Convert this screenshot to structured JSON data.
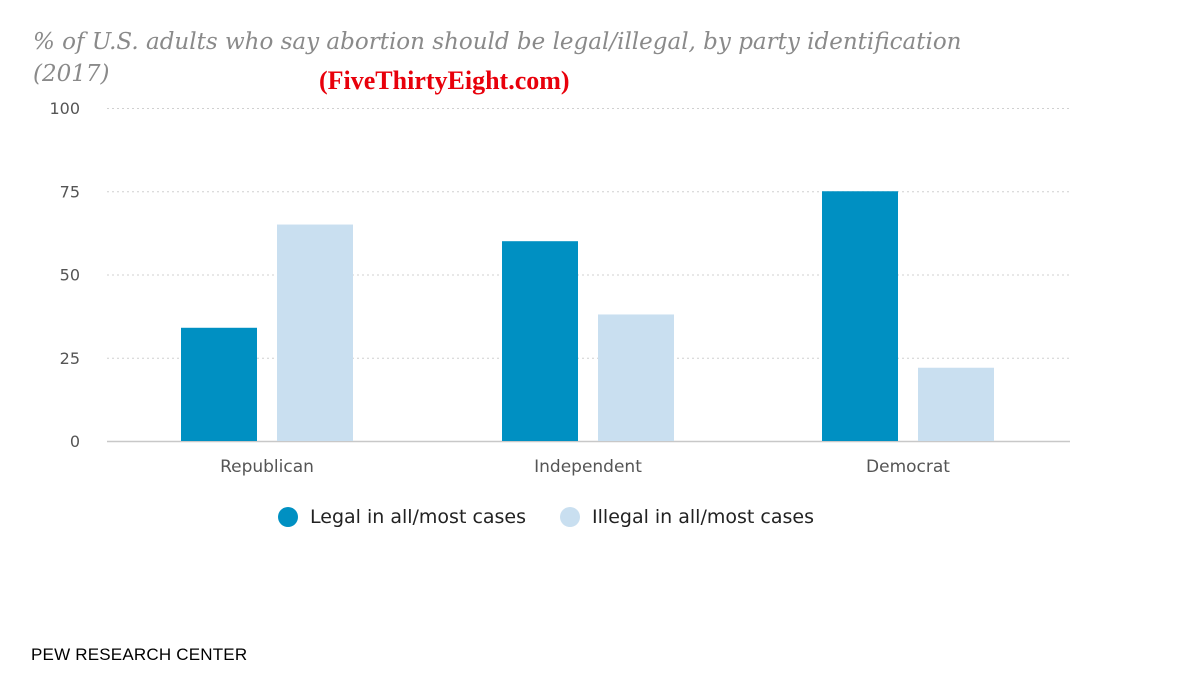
{
  "title": "% of U.S. adults who say abortion should be legal/illegal, by party identification (2017)",
  "watermark": "(FiveThirtyEight.com)",
  "source": "PEW RESEARCH CENTER",
  "colors": {
    "legal": "#0090c2",
    "illegal": "#c9dff0",
    "title": "#8a8a8a",
    "watermark": "#e8000b",
    "grid": "#d0d0d0",
    "axis": "#c8c8c8"
  },
  "chart_data": {
    "type": "bar",
    "categories": [
      "Republican",
      "Independent",
      "Democrat"
    ],
    "series": [
      {
        "name": "Legal in all/most cases",
        "values": [
          34,
          60,
          75
        ],
        "color": "#0090c2"
      },
      {
        "name": "Illegal in all/most cases",
        "values": [
          65,
          38,
          22
        ],
        "color": "#c9dff0"
      }
    ],
    "ylim": [
      0,
      100
    ],
    "yticks": [
      0,
      25,
      50,
      75,
      100
    ],
    "grid": true,
    "legend_position": "bottom-center"
  }
}
